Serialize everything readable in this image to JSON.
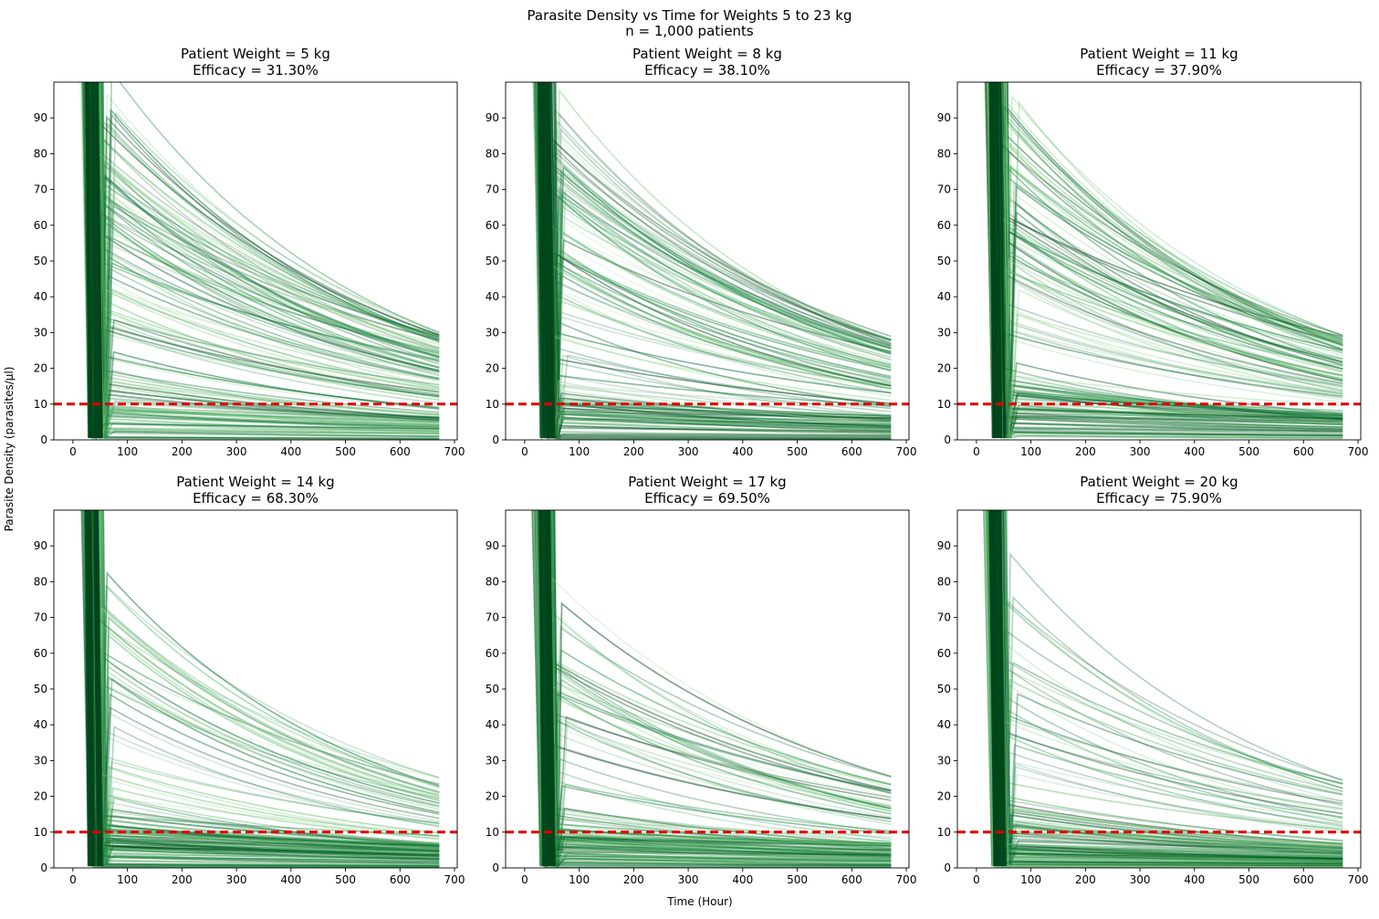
{
  "figure": {
    "title_line1": "Parasite Density vs Time for Weights 5 to 23 kg",
    "title_line2": "n = 1,000 patients",
    "xlabel": "Time (Hour)",
    "ylabel": "Parasite Density (parasites/µl)"
  },
  "colors": {
    "trajectory": "#0b6b37",
    "threshold": "#e00000"
  },
  "chart_data": [
    {
      "type": "line",
      "title_line1": "Patient Weight = 5 kg",
      "title_line2": "Efficacy = 31.30%",
      "xlim": [
        -35,
        705
      ],
      "ylim": [
        0,
        100
      ],
      "xticks": [
        0,
        100,
        200,
        300,
        400,
        500,
        600,
        700
      ],
      "yticks": [
        0,
        10,
        20,
        30,
        40,
        50,
        60,
        70,
        80,
        90
      ],
      "threshold_y": 10,
      "x_range": [
        0,
        672
      ],
      "trajectory_end_values_range": [
        0,
        31
      ],
      "peak_after_clearance_max": 100
    },
    {
      "type": "line",
      "title_line1": "Patient Weight = 8 kg",
      "title_line2": "Efficacy = 38.10%",
      "xlim": [
        -35,
        705
      ],
      "ylim": [
        0,
        100
      ],
      "xticks": [
        0,
        100,
        200,
        300,
        400,
        500,
        600,
        700
      ],
      "yticks": [
        0,
        10,
        20,
        30,
        40,
        50,
        60,
        70,
        80,
        90
      ],
      "threshold_y": 10,
      "x_range": [
        0,
        672
      ],
      "trajectory_end_values_range": [
        0,
        29
      ],
      "peak_after_clearance_max": 100
    },
    {
      "type": "line",
      "title_line1": "Patient Weight = 11 kg",
      "title_line2": "Efficacy = 37.90%",
      "xlim": [
        -35,
        705
      ],
      "ylim": [
        0,
        100
      ],
      "xticks": [
        0,
        100,
        200,
        300,
        400,
        500,
        600,
        700
      ],
      "yticks": [
        0,
        10,
        20,
        30,
        40,
        50,
        60,
        70,
        80,
        90
      ],
      "threshold_y": 10,
      "x_range": [
        0,
        672
      ],
      "trajectory_end_values_range": [
        0,
        30
      ],
      "peak_after_clearance_max": 100
    },
    {
      "type": "line",
      "title_line1": "Patient Weight = 14 kg",
      "title_line2": "Efficacy = 68.30%",
      "xlim": [
        -35,
        705
      ],
      "ylim": [
        0,
        100
      ],
      "xticks": [
        0,
        100,
        200,
        300,
        400,
        500,
        600,
        700
      ],
      "yticks": [
        0,
        10,
        20,
        30,
        40,
        50,
        60,
        70,
        80,
        90
      ],
      "threshold_y": 10,
      "x_range": [
        0,
        672
      ],
      "trajectory_end_values_range": [
        0,
        26
      ],
      "peak_after_clearance_max": 76
    },
    {
      "type": "line",
      "title_line1": "Patient Weight = 17 kg",
      "title_line2": "Efficacy = 69.50%",
      "xlim": [
        -35,
        705
      ],
      "ylim": [
        0,
        100
      ],
      "xticks": [
        0,
        100,
        200,
        300,
        400,
        500,
        600,
        700
      ],
      "yticks": [
        0,
        10,
        20,
        30,
        40,
        50,
        60,
        70,
        80,
        90
      ],
      "threshold_y": 10,
      "x_range": [
        0,
        672
      ],
      "trajectory_end_values_range": [
        0,
        26
      ],
      "peak_after_clearance_max": 79
    },
    {
      "type": "line",
      "title_line1": "Patient Weight = 20 kg",
      "title_line2": "Efficacy = 75.90%",
      "xlim": [
        -35,
        705
      ],
      "ylim": [
        0,
        100
      ],
      "xticks": [
        0,
        100,
        200,
        300,
        400,
        500,
        600,
        700
      ],
      "yticks": [
        0,
        10,
        20,
        30,
        40,
        50,
        60,
        70,
        80,
        90
      ],
      "threshold_y": 10,
      "x_range": [
        0,
        672
      ],
      "trajectory_end_values_range": [
        0,
        25
      ],
      "peak_after_clearance_max": 66
    }
  ]
}
